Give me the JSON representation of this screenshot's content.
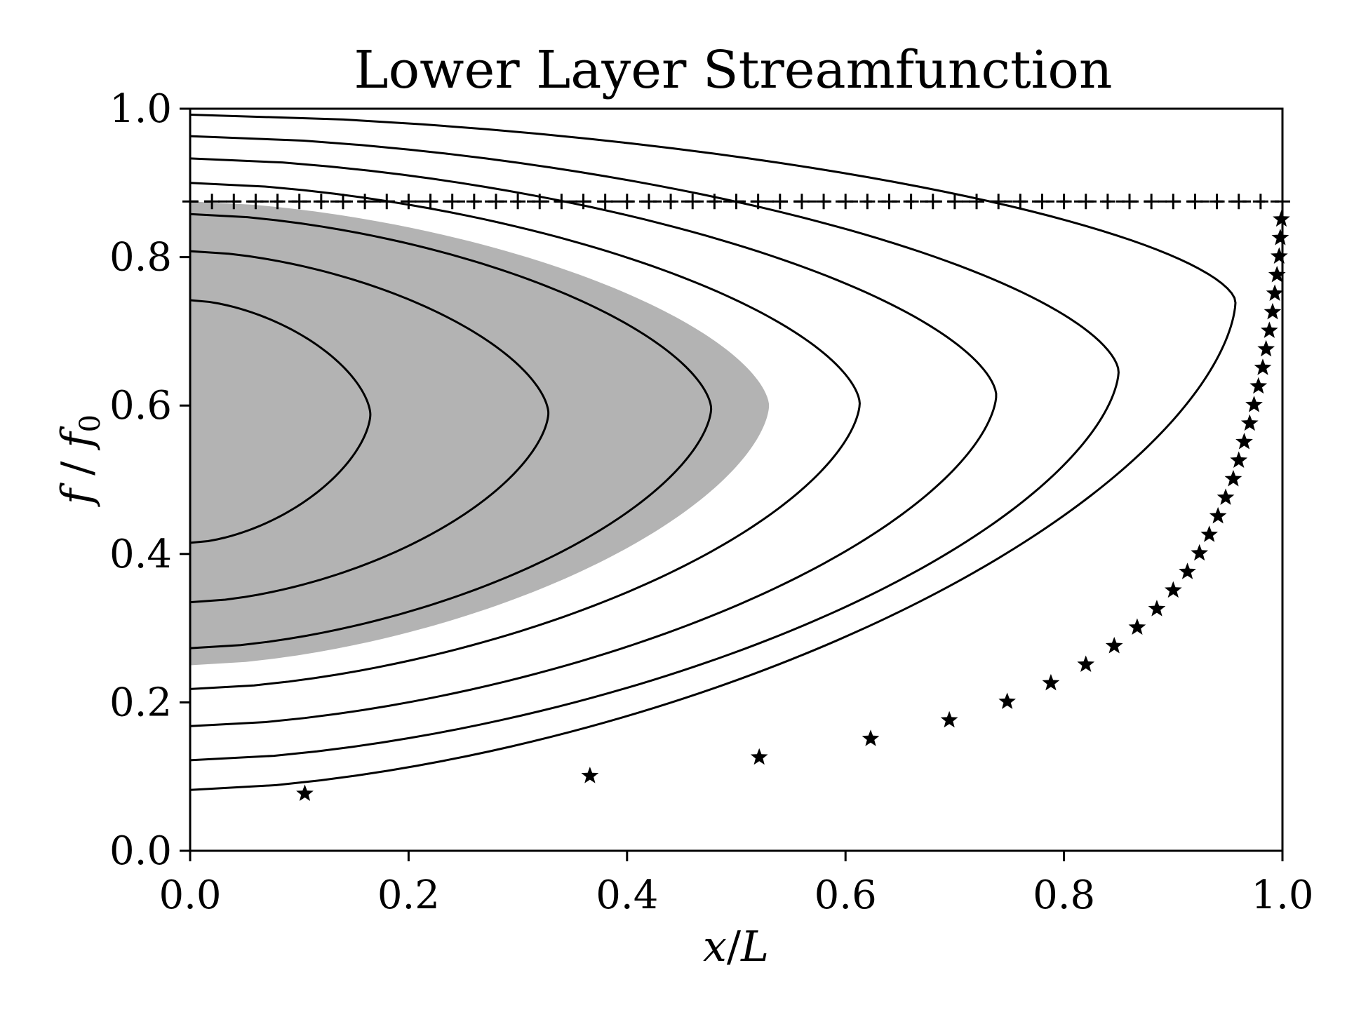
{
  "chart_data": {
    "type": "line",
    "title": "Lower Layer Streamfunction",
    "xlabel": "x/L",
    "ylabel": "f / f0",
    "ylabel_parts": {
      "base": "f",
      "sep": " / ",
      "sub_base": "f",
      "sub": "0"
    },
    "xlim": [
      0.0,
      1.0
    ],
    "ylim": [
      0.0,
      1.0
    ],
    "xticks": [
      "0.0",
      "0.2",
      "0.4",
      "0.6",
      "0.8",
      "1.0"
    ],
    "yticks": [
      "0.0",
      "0.2",
      "0.4",
      "0.6",
      "0.8",
      "1.0"
    ],
    "grid": false,
    "colors": {
      "line": "#000000",
      "shade": "#b3b3b3"
    },
    "shaded_region": {
      "x_max": 0.53,
      "y_center": 0.6,
      "y_bottom": 0.25,
      "y_top": 0.875
    },
    "dashed_line": {
      "y": 0.875,
      "marker": "plus",
      "x_start": 0.0,
      "x_end": 1.0,
      "n_markers": 51
    },
    "contours": [
      {
        "x_max": 0.165,
        "y_center": 0.588,
        "y_bottom": 0.415,
        "y_top": 0.742
      },
      {
        "x_max": 0.328,
        "y_center": 0.59,
        "y_bottom": 0.335,
        "y_top": 0.808
      },
      {
        "x_max": 0.477,
        "y_center": 0.596,
        "y_bottom": 0.273,
        "y_top": 0.858
      },
      {
        "x_max": 0.613,
        "y_center": 0.603,
        "y_bottom": 0.218,
        "y_top": 0.9
      },
      {
        "x_max": 0.738,
        "y_center": 0.614,
        "y_bottom": 0.168,
        "y_top": 0.933
      },
      {
        "x_max": 0.85,
        "y_center": 0.646,
        "y_bottom": 0.122,
        "y_top": 0.963
      },
      {
        "x_max": 0.957,
        "y_center": 0.74,
        "y_bottom": 0.082,
        "y_top": 0.992
      }
    ],
    "star_points": [
      [
        0.105,
        0.077
      ],
      [
        0.366,
        0.101
      ],
      [
        0.521,
        0.126
      ],
      [
        0.623,
        0.151
      ],
      [
        0.695,
        0.176
      ],
      [
        0.748,
        0.201
      ],
      [
        0.788,
        0.226
      ],
      [
        0.82,
        0.251
      ],
      [
        0.846,
        0.276
      ],
      [
        0.867,
        0.301
      ],
      [
        0.885,
        0.326
      ],
      [
        0.9,
        0.351
      ],
      [
        0.913,
        0.376
      ],
      [
        0.924,
        0.401
      ],
      [
        0.933,
        0.426
      ],
      [
        0.941,
        0.451
      ],
      [
        0.948,
        0.476
      ],
      [
        0.955,
        0.501
      ],
      [
        0.96,
        0.526
      ],
      [
        0.965,
        0.551
      ],
      [
        0.97,
        0.576
      ],
      [
        0.974,
        0.601
      ],
      [
        0.978,
        0.626
      ],
      [
        0.982,
        0.651
      ],
      [
        0.985,
        0.676
      ],
      [
        0.988,
        0.701
      ],
      [
        0.991,
        0.726
      ],
      [
        0.993,
        0.751
      ],
      [
        0.995,
        0.776
      ],
      [
        0.997,
        0.801
      ],
      [
        0.998,
        0.826
      ],
      [
        0.999,
        0.851
      ]
    ]
  }
}
